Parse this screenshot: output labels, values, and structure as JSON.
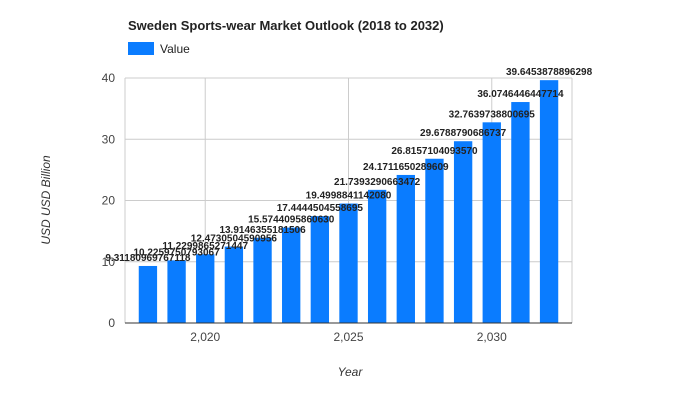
{
  "chart_data": {
    "type": "bar",
    "title": "Sweden Sports-wear Market Outlook (2018 to 2032)",
    "xlabel": "Year",
    "ylabel": "USD USD Billion",
    "legend": {
      "position": "top-left",
      "entries": [
        "Value"
      ]
    },
    "grid": true,
    "ylim": [
      0,
      40
    ],
    "xlim": [
      2017.2,
      2032.8
    ],
    "yticks": [
      0,
      10,
      20,
      30,
      40
    ],
    "xticks": [
      2020,
      2025,
      2030
    ],
    "xtick_labels": [
      "2,020",
      "2,025",
      "2,030"
    ],
    "series": [
      {
        "name": "Value",
        "color": "#0a7cff",
        "x": [
          2018,
          2019,
          2020,
          2021,
          2022,
          2023,
          2024,
          2025,
          2026,
          2027,
          2028,
          2029,
          2030,
          2031,
          2032
        ],
        "values": [
          9.31180969767118,
          10.2259750793067,
          11.2299865271447,
          12.4730504590956,
          13.9146355181506,
          15.574409586063,
          17.4444504558695,
          19.499884114208,
          21.7393290663472,
          24.1711650289609,
          26.815710409357,
          29.6788790686737,
          32.7639738800695,
          36.0746446447714,
          39.6453878896298
        ],
        "labels": [
          "9.31180969767118",
          "10.2259750793067",
          "11.2299865271447",
          "12.4730504590956",
          "13.9146355181506",
          "15.5744095860630",
          "17.4444504558695",
          "19.4998841142080",
          "21.7393290663472",
          "24.1711650289609",
          "26.8157104093570",
          "29.6788790686737",
          "32.7639738800695",
          "36.0746446447714",
          "39.6453878896298"
        ]
      }
    ]
  }
}
